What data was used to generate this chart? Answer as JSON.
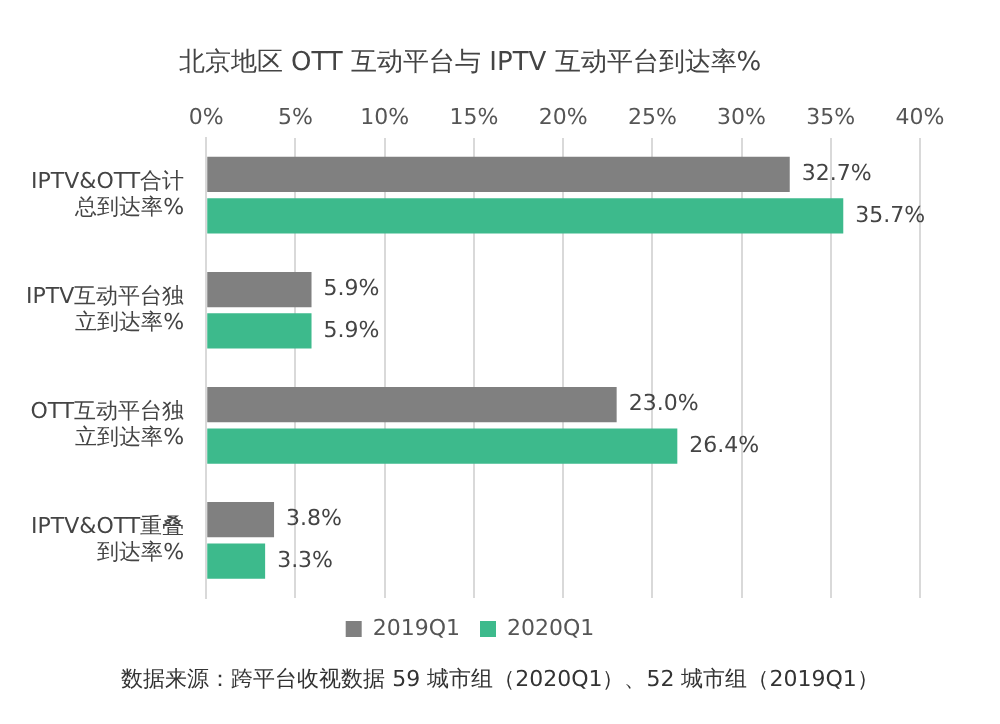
{
  "chart_data": {
    "type": "bar",
    "orientation": "horizontal",
    "title": "北京地区 OTT 互动平台与 IPTV 互动平台到达率%",
    "categories": [
      "IPTV&OTT合计总到达率%",
      "IPTV互动平台独立到达率%",
      "OTT互动平台独立到达率%",
      "IPTV&OTT重叠到达率%"
    ],
    "series": [
      {
        "name": "2019Q1",
        "color": "#808080",
        "values": [
          32.7,
          5.9,
          23.0,
          3.8
        ],
        "value_labels": [
          "32.7%",
          "5.9%",
          "23.0%",
          "3.8%"
        ]
      },
      {
        "name": "2020Q1",
        "color": "#3dba8c",
        "values": [
          35.7,
          5.9,
          26.4,
          3.3
        ],
        "value_labels": [
          "35.7%",
          "5.9%",
          "26.4%",
          "3.3%"
        ]
      }
    ],
    "xlim": [
      0,
      40
    ],
    "xticks": [
      {
        "value": 0,
        "label": "0%"
      },
      {
        "value": 5,
        "label": "5%"
      },
      {
        "value": 10,
        "label": "10%"
      },
      {
        "value": 15,
        "label": "15%"
      },
      {
        "value": 20,
        "label": "20%"
      },
      {
        "value": 25,
        "label": "25%"
      },
      {
        "value": 30,
        "label": "30%"
      },
      {
        "value": 35,
        "label": "35%"
      },
      {
        "value": 40,
        "label": "40%"
      }
    ],
    "grid": "x",
    "legend": "bottom",
    "annotations": [
      "数据来源：跨平台收视数据 59 城市组（2020Q1）、52 城市组（2019Q1）"
    ]
  }
}
